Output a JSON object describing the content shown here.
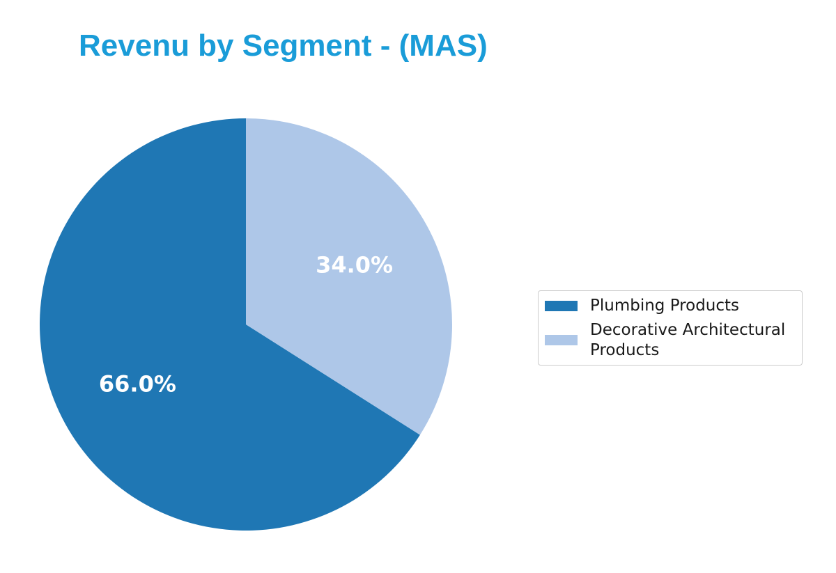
{
  "title": "Revenu by Segment - (MAS)",
  "colors": {
    "title": "#1a9cd8",
    "slice_label": "#ffffff",
    "legend_border": "#cccccc",
    "legend_text": "#1a1a1a",
    "background": "#ffffff"
  },
  "chart_data": {
    "type": "pie",
    "title": "Revenu by Segment - (MAS)",
    "labels": [
      "Plumbing Products",
      "Decorative Architectural Products"
    ],
    "values": [
      66.0,
      34.0
    ],
    "value_labels": [
      "66.0%",
      "34.0%"
    ],
    "colors": [
      "#1f77b4",
      "#aec7e8"
    ],
    "start_angle_deg": 90,
    "direction": "counterclockwise",
    "label_radius_fraction": 0.6,
    "legend_position": "center right"
  }
}
